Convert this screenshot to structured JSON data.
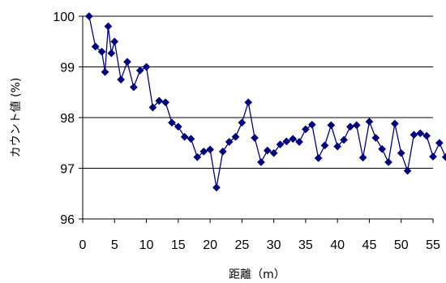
{
  "chart_data": {
    "type": "line",
    "xlabel": "距離（m）",
    "ylabel": "カウント値 (%)",
    "xlim": [
      0,
      55
    ],
    "ylim": [
      96,
      100
    ],
    "xticks": [
      0,
      5,
      10,
      15,
      20,
      25,
      30,
      35,
      40,
      45,
      50,
      55
    ],
    "yticks": [
      96,
      97,
      98,
      99,
      100
    ],
    "grid": "horizontal",
    "legend": "none",
    "series": [
      {
        "color": "#000080",
        "marker": "diamond",
        "x": [
          1,
          2,
          3,
          3.5,
          4,
          4.5,
          5,
          6,
          7,
          8,
          9,
          10,
          11,
          12,
          13,
          14,
          15,
          16,
          17,
          18,
          19,
          20,
          21,
          22,
          23,
          24,
          25,
          26,
          27,
          28,
          29,
          30,
          31,
          32,
          33,
          34,
          35,
          36,
          37,
          38,
          39,
          40,
          41,
          42,
          43,
          44,
          45,
          46,
          47,
          48,
          49,
          50,
          51,
          52,
          53,
          54,
          55,
          56,
          57
        ],
        "y": [
          100,
          99.4,
          99.3,
          98.9,
          99.8,
          99.27,
          99.5,
          98.75,
          99.1,
          98.6,
          98.93,
          99.0,
          98.2,
          98.33,
          98.3,
          97.9,
          97.82,
          97.62,
          97.58,
          97.22,
          97.33,
          97.37,
          96.62,
          97.33,
          97.52,
          97.62,
          97.9,
          98.3,
          97.6,
          97.12,
          97.35,
          97.3,
          97.47,
          97.53,
          97.58,
          97.52,
          97.77,
          97.86,
          97.2,
          97.45,
          97.85,
          97.43,
          97.56,
          97.82,
          97.85,
          97.21,
          97.92,
          97.6,
          97.38,
          97.12,
          97.88,
          97.3,
          96.95,
          97.66,
          97.69,
          97.64,
          97.23,
          97.5,
          97.22
        ]
      }
    ]
  },
  "labels": {
    "xlabel": "距離（m）",
    "ylabel": "カウント値 (%)"
  }
}
